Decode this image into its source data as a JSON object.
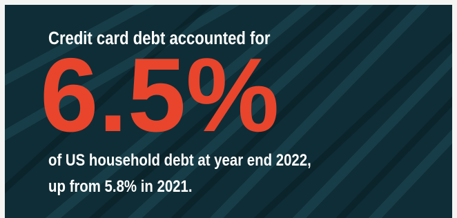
{
  "headline": "Credit card debt accounted for",
  "stat": "6.5%",
  "body": [
    "of US household debt at year end 2022,",
    "up from 5.8% in 2021."
  ]
}
